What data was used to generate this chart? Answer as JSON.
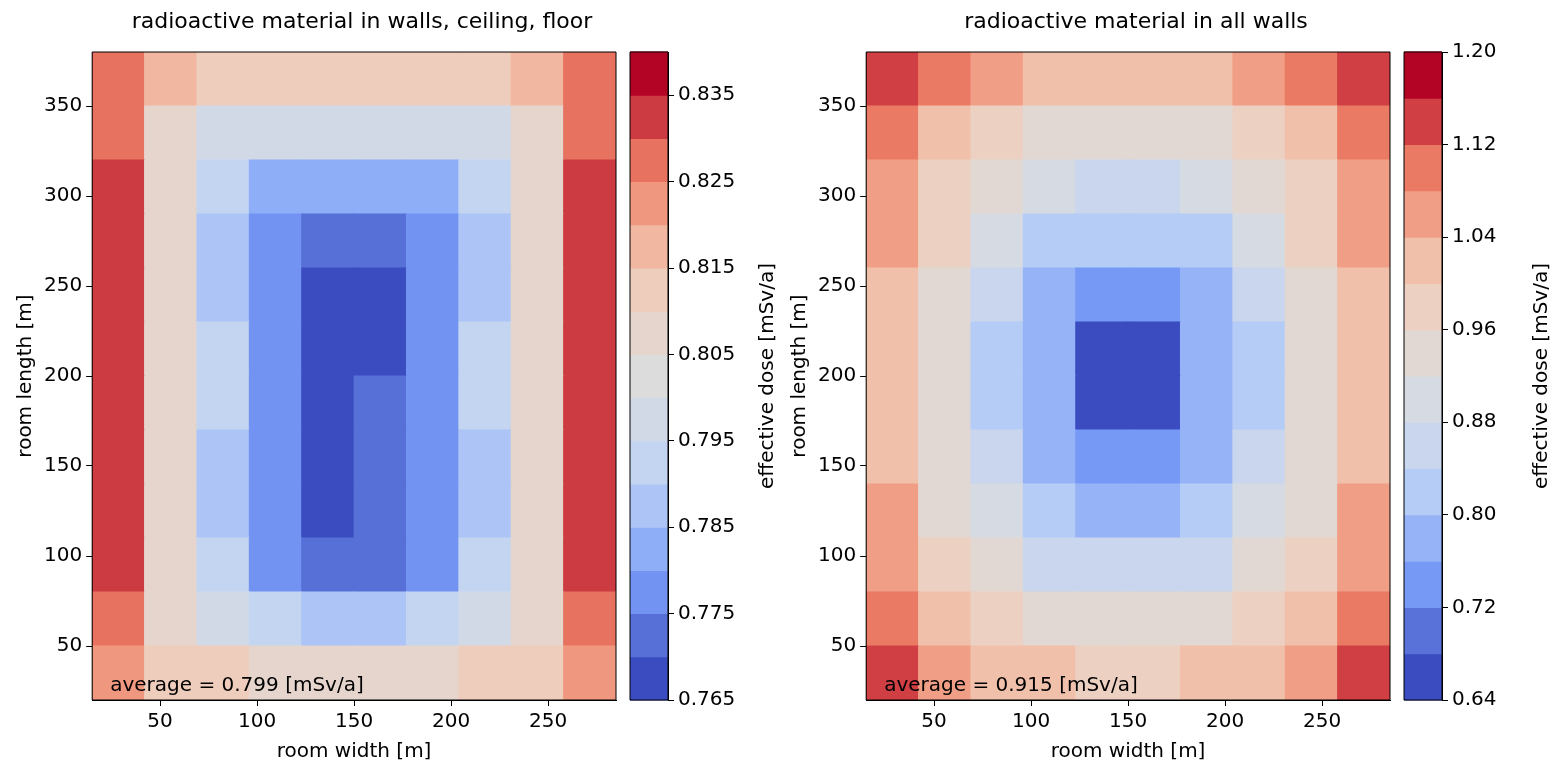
{
  "chart_data": [
    {
      "type": "heatmap",
      "title": "radioactive material in walls, ceiling, floor",
      "xlabel": "room width [m]",
      "ylabel": "room length [m]",
      "clabel": "effective dose [mSv/a]",
      "x": [
        28.5,
        55.5,
        82.5,
        109.5,
        136.5,
        163.5,
        190.5,
        217.5,
        244.5,
        271.5
      ],
      "y": [
        365,
        335,
        305,
        275,
        245,
        215,
        185,
        155,
        125,
        95,
        65,
        35
      ],
      "xlim": [
        15,
        285
      ],
      "xticks": [
        50,
        100,
        150,
        200,
        250
      ],
      "ylim": [
        20,
        380
      ],
      "yticks": [
        50,
        100,
        150,
        200,
        250,
        300,
        350
      ],
      "clim": [
        0.765,
        0.84
      ],
      "cticks": [
        0.765,
        0.775,
        0.785,
        0.795,
        0.805,
        0.815,
        0.825,
        0.835
      ],
      "colors": [
        "#3b4cc0",
        "#7b9ff9",
        "#c0d4f5",
        "#dddcdc",
        "#f2cbb7",
        "#ee8468",
        "#b40426"
      ],
      "cells": [
        [
          0.826,
          0.816,
          0.814,
          0.813,
          0.813,
          0.813,
          0.813,
          0.814,
          0.816,
          0.826
        ],
        [
          0.828,
          0.808,
          0.798,
          0.795,
          0.795,
          0.795,
          0.795,
          0.798,
          0.808,
          0.828
        ],
        [
          0.831,
          0.806,
          0.791,
          0.784,
          0.782,
          0.782,
          0.784,
          0.791,
          0.806,
          0.831
        ],
        [
          0.834,
          0.805,
          0.789,
          0.778,
          0.77,
          0.772,
          0.778,
          0.789,
          0.805,
          0.834
        ],
        [
          0.834,
          0.805,
          0.789,
          0.776,
          0.768,
          0.768,
          0.776,
          0.789,
          0.805,
          0.834
        ],
        [
          0.833,
          0.806,
          0.79,
          0.776,
          0.768,
          0.768,
          0.776,
          0.79,
          0.806,
          0.833
        ],
        [
          0.833,
          0.806,
          0.79,
          0.776,
          0.768,
          0.77,
          0.777,
          0.79,
          0.806,
          0.833
        ],
        [
          0.834,
          0.806,
          0.789,
          0.775,
          0.768,
          0.772,
          0.777,
          0.789,
          0.806,
          0.834
        ],
        [
          0.834,
          0.806,
          0.789,
          0.776,
          0.768,
          0.77,
          0.778,
          0.789,
          0.806,
          0.834
        ],
        [
          0.83,
          0.807,
          0.792,
          0.779,
          0.774,
          0.774,
          0.779,
          0.792,
          0.807,
          0.83
        ],
        [
          0.826,
          0.809,
          0.798,
          0.791,
          0.789,
          0.789,
          0.791,
          0.798,
          0.809,
          0.826
        ],
        [
          0.822,
          0.814,
          0.811,
          0.809,
          0.809,
          0.809,
          0.809,
          0.811,
          0.814,
          0.822
        ]
      ],
      "annotations": [
        "average = 0.799 [mSv/a]"
      ]
    },
    {
      "type": "heatmap",
      "title": "radioactive material in all walls",
      "xlabel": "room width [m]",
      "ylabel": "room length [m]",
      "clabel": "effective dose [mSv/a]",
      "x": [
        28.5,
        55.5,
        82.5,
        109.5,
        136.5,
        163.5,
        190.5,
        217.5,
        244.5,
        271.5
      ],
      "y": [
        365,
        335,
        305,
        275,
        245,
        215,
        185,
        155,
        125,
        95,
        65,
        35
      ],
      "xlim": [
        15,
        285
      ],
      "xticks": [
        50,
        100,
        150,
        200,
        250
      ],
      "ylim": [
        20,
        380
      ],
      "yticks": [
        50,
        100,
        150,
        200,
        250,
        300,
        350
      ],
      "clim": [
        0.64,
        1.2
      ],
      "cticks": [
        0.64,
        0.72,
        {
          "value": 0.8,
          "label": "0.80"
        },
        0.88,
        0.96,
        1.04,
        1.12,
        {
          "value": 1.2,
          "label": "1.20"
        }
      ],
      "colors": [
        "#3b4cc0",
        "#7b9ff9",
        "#c0d4f5",
        "#dddcdc",
        "#f2cbb7",
        "#ee8468",
        "#b40426"
      ],
      "cells": [
        [
          1.14,
          1.08,
          1.04,
          1.01,
          1.0,
          1.0,
          1.01,
          1.04,
          1.08,
          1.14
        ],
        [
          1.1,
          1.03,
          0.98,
          0.95,
          0.93,
          0.93,
          0.95,
          0.98,
          1.03,
          1.1
        ],
        [
          1.07,
          0.99,
          0.93,
          0.89,
          0.86,
          0.86,
          0.89,
          0.93,
          0.99,
          1.07
        ],
        [
          1.05,
          0.96,
          0.89,
          0.83,
          0.8,
          0.8,
          0.83,
          0.89,
          0.96,
          1.05
        ],
        [
          1.03,
          0.94,
          0.85,
          0.79,
          0.74,
          0.74,
          0.79,
          0.85,
          0.94,
          1.03
        ],
        [
          1.01,
          0.92,
          0.83,
          0.76,
          0.67,
          0.67,
          0.76,
          0.83,
          0.92,
          1.01
        ],
        [
          1.01,
          0.92,
          0.83,
          0.76,
          0.67,
          0.67,
          0.76,
          0.83,
          0.92,
          1.01
        ],
        [
          1.02,
          0.93,
          0.85,
          0.78,
          0.73,
          0.73,
          0.78,
          0.85,
          0.93,
          1.02
        ],
        [
          1.04,
          0.95,
          0.88,
          0.82,
          0.78,
          0.78,
          0.82,
          0.88,
          0.95,
          1.04
        ],
        [
          1.06,
          0.98,
          0.92,
          0.87,
          0.85,
          0.85,
          0.87,
          0.92,
          0.98,
          1.06
        ],
        [
          1.09,
          1.02,
          0.97,
          0.94,
          0.92,
          0.92,
          0.94,
          0.97,
          1.02,
          1.09
        ],
        [
          1.14,
          1.07,
          1.03,
          1.0,
          0.99,
          0.99,
          1.0,
          1.03,
          1.07,
          1.14
        ]
      ],
      "annotations": [
        "average = 0.915 [mSv/a]"
      ]
    }
  ]
}
